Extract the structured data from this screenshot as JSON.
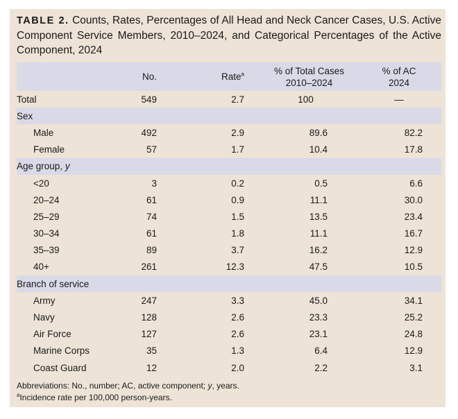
{
  "title": {
    "label": "TABLE 2.",
    "text": "Counts, Rates, Percentages of All Head and Neck Cancer Cases, U.S. Active Component Service Members, 2010–2024, and Categorical Percentages of the Active Component, 2024"
  },
  "headers": {
    "no": "No.",
    "rate": "Rate",
    "rate_sup": "a",
    "pct_line1": "% of Total Cases",
    "pct_line2": "2010–2024",
    "ac_line1": "% of AC",
    "ac_line2": "2024"
  },
  "total": {
    "label": "Total",
    "no": "549",
    "rate": "2.7",
    "pct": "100",
    "ac": "—"
  },
  "groups": {
    "sex": {
      "label": "Sex",
      "rows": [
        {
          "label": "Male",
          "no": "492",
          "rate": "2.9",
          "pct": "89.6",
          "ac": "82.2"
        },
        {
          "label": "Female",
          "no": "57",
          "rate": "1.7",
          "pct": "10.4",
          "ac": "17.8"
        }
      ]
    },
    "age": {
      "label": "Age group,",
      "label_unit": "y",
      "rows": [
        {
          "label": "<20",
          "no": "3",
          "rate": "0.2",
          "pct": "0.5",
          "ac": "6.6"
        },
        {
          "label": "20–24",
          "no": "61",
          "rate": "0.9",
          "pct": "11.1",
          "ac": "30.0"
        },
        {
          "label": "25–29",
          "no": "74",
          "rate": "1.5",
          "pct": "13.5",
          "ac": "23.4"
        },
        {
          "label": "30–34",
          "no": "61",
          "rate": "1.8",
          "pct": "11.1",
          "ac": "16.7"
        },
        {
          "label": "35–39",
          "no": "89",
          "rate": "3.7",
          "pct": "16.2",
          "ac": "12.9"
        },
        {
          "label": "40+",
          "no": "261",
          "rate": "12.3",
          "pct": "47.5",
          "ac": "10.5"
        }
      ]
    },
    "branch": {
      "label": "Branch of service",
      "rows": [
        {
          "label": "Army",
          "no": "247",
          "rate": "3.3",
          "pct": "45.0",
          "ac": "34.1"
        },
        {
          "label": "Navy",
          "no": "128",
          "rate": "2.6",
          "pct": "23.3",
          "ac": "25.2"
        },
        {
          "label": "Air Force",
          "no": "127",
          "rate": "2.6",
          "pct": "23.1",
          "ac": "24.8"
        },
        {
          "label": "Marine Corps",
          "no": "35",
          "rate": "1.3",
          "pct": "6.4",
          "ac": "12.9"
        },
        {
          "label": "Coast Guard",
          "no": "12",
          "rate": "2.0",
          "pct": "2.2",
          "ac": "3.1"
        }
      ]
    }
  },
  "footnotes": {
    "abbrev_prefix": "Abbreviations: No., number; AC, active component;",
    "abbrev_y": "y",
    "abbrev_suffix": ", years.",
    "note_sup": "a",
    "note_text": "Incidence rate per 100,000 person-years."
  }
}
